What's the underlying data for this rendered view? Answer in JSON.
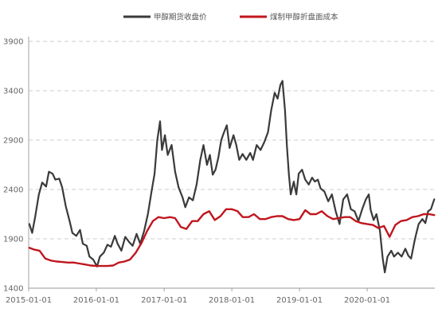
{
  "chart_data": {
    "type": "line",
    "x_range": [
      "2015-01-01",
      "2020-12-31"
    ],
    "ylim": [
      1400,
      3900
    ],
    "y_ticks": [
      1400,
      1900,
      2400,
      2900,
      3400,
      3900
    ],
    "y_tick_labels": [
      "1400",
      "1900",
      "2400",
      "2900",
      "3400",
      "3900"
    ],
    "x_ticks": [
      "2015-01-01",
      "2016-01-01",
      "2017-01-01",
      "2018-01-01",
      "2019-01-01",
      "2020-01-01"
    ],
    "x_tick_labels": [
      "2015-01-01",
      "2016-01-01",
      "2017-01-01",
      "2018-01-01",
      "2019-01-01",
      "2020-01-01"
    ],
    "grid": {
      "horizontal": true,
      "style": "dashed"
    },
    "legend": {
      "position": "top"
    },
    "series": [
      {
        "name": "甲醇期货收盘价",
        "color": "#3a3a3a",
        "points": [
          [
            "2015-01-05",
            2050
          ],
          [
            "2015-01-20",
            1960
          ],
          [
            "2015-02-05",
            2120
          ],
          [
            "2015-02-25",
            2350
          ],
          [
            "2015-03-15",
            2470
          ],
          [
            "2015-04-05",
            2430
          ],
          [
            "2015-04-20",
            2580
          ],
          [
            "2015-05-10",
            2560
          ],
          [
            "2015-05-25",
            2500
          ],
          [
            "2015-06-15",
            2510
          ],
          [
            "2015-07-01",
            2420
          ],
          [
            "2015-07-20",
            2230
          ],
          [
            "2015-08-10",
            2080
          ],
          [
            "2015-08-25",
            1960
          ],
          [
            "2015-09-15",
            1930
          ],
          [
            "2015-10-05",
            1990
          ],
          [
            "2015-10-20",
            1850
          ],
          [
            "2015-11-10",
            1830
          ],
          [
            "2015-11-25",
            1720
          ],
          [
            "2015-12-15",
            1690
          ],
          [
            "2016-01-05",
            1620
          ],
          [
            "2016-01-20",
            1720
          ],
          [
            "2016-02-10",
            1760
          ],
          [
            "2016-03-01",
            1840
          ],
          [
            "2016-03-20",
            1820
          ],
          [
            "2016-04-10",
            1930
          ],
          [
            "2016-04-25",
            1850
          ],
          [
            "2016-05-15",
            1780
          ],
          [
            "2016-06-05",
            1920
          ],
          [
            "2016-06-25",
            1870
          ],
          [
            "2016-07-15",
            1830
          ],
          [
            "2016-08-05",
            1950
          ],
          [
            "2016-08-25",
            1850
          ],
          [
            "2016-09-15",
            1980
          ],
          [
            "2016-10-05",
            2150
          ],
          [
            "2016-10-25",
            2380
          ],
          [
            "2016-11-10",
            2560
          ],
          [
            "2016-11-25",
            2900
          ],
          [
            "2016-12-10",
            3090
          ],
          [
            "2016-12-20",
            2800
          ],
          [
            "2017-01-05",
            2950
          ],
          [
            "2017-01-20",
            2750
          ],
          [
            "2017-02-10",
            2850
          ],
          [
            "2017-03-01",
            2580
          ],
          [
            "2017-03-20",
            2420
          ],
          [
            "2017-04-10",
            2320
          ],
          [
            "2017-04-25",
            2220
          ],
          [
            "2017-05-15",
            2320
          ],
          [
            "2017-06-05",
            2290
          ],
          [
            "2017-06-25",
            2450
          ],
          [
            "2017-07-15",
            2700
          ],
          [
            "2017-08-01",
            2850
          ],
          [
            "2017-08-20",
            2650
          ],
          [
            "2017-09-05",
            2750
          ],
          [
            "2017-09-20",
            2550
          ],
          [
            "2017-10-05",
            2600
          ],
          [
            "2017-10-20",
            2720
          ],
          [
            "2017-11-05",
            2900
          ],
          [
            "2017-11-20",
            2980
          ],
          [
            "2017-12-05",
            3050
          ],
          [
            "2017-12-20",
            2820
          ],
          [
            "2018-01-10",
            2950
          ],
          [
            "2018-01-25",
            2850
          ],
          [
            "2018-02-10",
            2700
          ],
          [
            "2018-02-28",
            2760
          ],
          [
            "2018-03-20",
            2700
          ],
          [
            "2018-04-10",
            2770
          ],
          [
            "2018-04-25",
            2700
          ],
          [
            "2018-05-15",
            2850
          ],
          [
            "2018-06-05",
            2800
          ],
          [
            "2018-06-25",
            2880
          ],
          [
            "2018-07-15",
            2980
          ],
          [
            "2018-08-01",
            3200
          ],
          [
            "2018-08-20",
            3380
          ],
          [
            "2018-09-05",
            3320
          ],
          [
            "2018-09-20",
            3460
          ],
          [
            "2018-10-01",
            3500
          ],
          [
            "2018-10-15",
            3200
          ],
          [
            "2018-10-25",
            2850
          ],
          [
            "2018-11-05",
            2550
          ],
          [
            "2018-11-15",
            2350
          ],
          [
            "2018-12-01",
            2480
          ],
          [
            "2018-12-15",
            2350
          ],
          [
            "2018-12-28",
            2560
          ],
          [
            "2019-01-15",
            2600
          ],
          [
            "2019-02-01",
            2500
          ],
          [
            "2019-02-20",
            2450
          ],
          [
            "2019-03-10",
            2520
          ],
          [
            "2019-03-25",
            2480
          ],
          [
            "2019-04-10",
            2500
          ],
          [
            "2019-04-25",
            2410
          ],
          [
            "2019-05-15",
            2380
          ],
          [
            "2019-06-05",
            2280
          ],
          [
            "2019-06-25",
            2350
          ],
          [
            "2019-07-15",
            2180
          ],
          [
            "2019-08-05",
            2050
          ],
          [
            "2019-08-25",
            2300
          ],
          [
            "2019-09-15",
            2350
          ],
          [
            "2019-10-05",
            2200
          ],
          [
            "2019-10-25",
            2180
          ],
          [
            "2019-11-15",
            2080
          ],
          [
            "2019-12-05",
            2200
          ],
          [
            "2019-12-25",
            2300
          ],
          [
            "2020-01-10",
            2350
          ],
          [
            "2020-01-20",
            2190
          ],
          [
            "2020-02-05",
            2090
          ],
          [
            "2020-02-20",
            2150
          ],
          [
            "2020-03-10",
            1980
          ],
          [
            "2020-03-25",
            1700
          ],
          [
            "2020-04-05",
            1560
          ],
          [
            "2020-04-20",
            1720
          ],
          [
            "2020-05-10",
            1780
          ],
          [
            "2020-05-25",
            1720
          ],
          [
            "2020-06-15",
            1760
          ],
          [
            "2020-07-05",
            1720
          ],
          [
            "2020-07-25",
            1800
          ],
          [
            "2020-08-10",
            1730
          ],
          [
            "2020-08-25",
            1700
          ],
          [
            "2020-09-15",
            1900
          ],
          [
            "2020-10-05",
            2050
          ],
          [
            "2020-10-25",
            2100
          ],
          [
            "2020-11-10",
            2060
          ],
          [
            "2020-11-25",
            2180
          ],
          [
            "2020-12-10",
            2200
          ],
          [
            "2020-12-28",
            2300
          ]
        ]
      },
      {
        "name": "煤制甲醇折盘面成本",
        "color": "#c0161e",
        "points": [
          [
            "2015-01-05",
            1810
          ],
          [
            "2015-02-01",
            1790
          ],
          [
            "2015-03-01",
            1780
          ],
          [
            "2015-04-01",
            1700
          ],
          [
            "2015-05-01",
            1680
          ],
          [
            "2015-06-01",
            1670
          ],
          [
            "2015-07-01",
            1665
          ],
          [
            "2015-08-01",
            1660
          ],
          [
            "2015-09-01",
            1660
          ],
          [
            "2015-10-01",
            1650
          ],
          [
            "2015-11-01",
            1640
          ],
          [
            "2015-12-01",
            1630
          ],
          [
            "2016-01-01",
            1625
          ],
          [
            "2016-02-01",
            1625
          ],
          [
            "2016-03-01",
            1625
          ],
          [
            "2016-04-01",
            1630
          ],
          [
            "2016-05-01",
            1660
          ],
          [
            "2016-06-01",
            1670
          ],
          [
            "2016-07-01",
            1690
          ],
          [
            "2016-08-01",
            1760
          ],
          [
            "2016-09-01",
            1860
          ],
          [
            "2016-10-01",
            1980
          ],
          [
            "2016-11-01",
            2080
          ],
          [
            "2016-12-01",
            2120
          ],
          [
            "2017-01-01",
            2110
          ],
          [
            "2017-02-01",
            2120
          ],
          [
            "2017-03-01",
            2110
          ],
          [
            "2017-04-01",
            2020
          ],
          [
            "2017-05-01",
            2000
          ],
          [
            "2017-06-01",
            2080
          ],
          [
            "2017-07-01",
            2080
          ],
          [
            "2017-08-01",
            2150
          ],
          [
            "2017-09-01",
            2180
          ],
          [
            "2017-10-01",
            2090
          ],
          [
            "2017-11-01",
            2130
          ],
          [
            "2017-12-01",
            2200
          ],
          [
            "2018-01-01",
            2200
          ],
          [
            "2018-02-01",
            2180
          ],
          [
            "2018-03-01",
            2120
          ],
          [
            "2018-04-01",
            2120
          ],
          [
            "2018-05-01",
            2150
          ],
          [
            "2018-06-01",
            2100
          ],
          [
            "2018-07-01",
            2100
          ],
          [
            "2018-08-01",
            2120
          ],
          [
            "2018-09-01",
            2130
          ],
          [
            "2018-10-01",
            2130
          ],
          [
            "2018-11-01",
            2100
          ],
          [
            "2018-12-01",
            2090
          ],
          [
            "2019-01-01",
            2100
          ],
          [
            "2019-02-01",
            2190
          ],
          [
            "2019-03-01",
            2150
          ],
          [
            "2019-04-01",
            2150
          ],
          [
            "2019-05-01",
            2180
          ],
          [
            "2019-06-01",
            2130
          ],
          [
            "2019-07-01",
            2100
          ],
          [
            "2019-08-01",
            2110
          ],
          [
            "2019-09-01",
            2120
          ],
          [
            "2019-10-01",
            2120
          ],
          [
            "2019-11-01",
            2080
          ],
          [
            "2019-12-01",
            2060
          ],
          [
            "2020-01-01",
            2050
          ],
          [
            "2020-02-01",
            2040
          ],
          [
            "2020-03-01",
            2010
          ],
          [
            "2020-04-01",
            2030
          ],
          [
            "2020-05-01",
            1920
          ],
          [
            "2020-06-01",
            2040
          ],
          [
            "2020-07-01",
            2080
          ],
          [
            "2020-08-01",
            2090
          ],
          [
            "2020-09-01",
            2120
          ],
          [
            "2020-10-01",
            2130
          ],
          [
            "2020-11-01",
            2150
          ],
          [
            "2020-12-01",
            2150
          ],
          [
            "2020-12-28",
            2140
          ]
        ]
      }
    ]
  }
}
